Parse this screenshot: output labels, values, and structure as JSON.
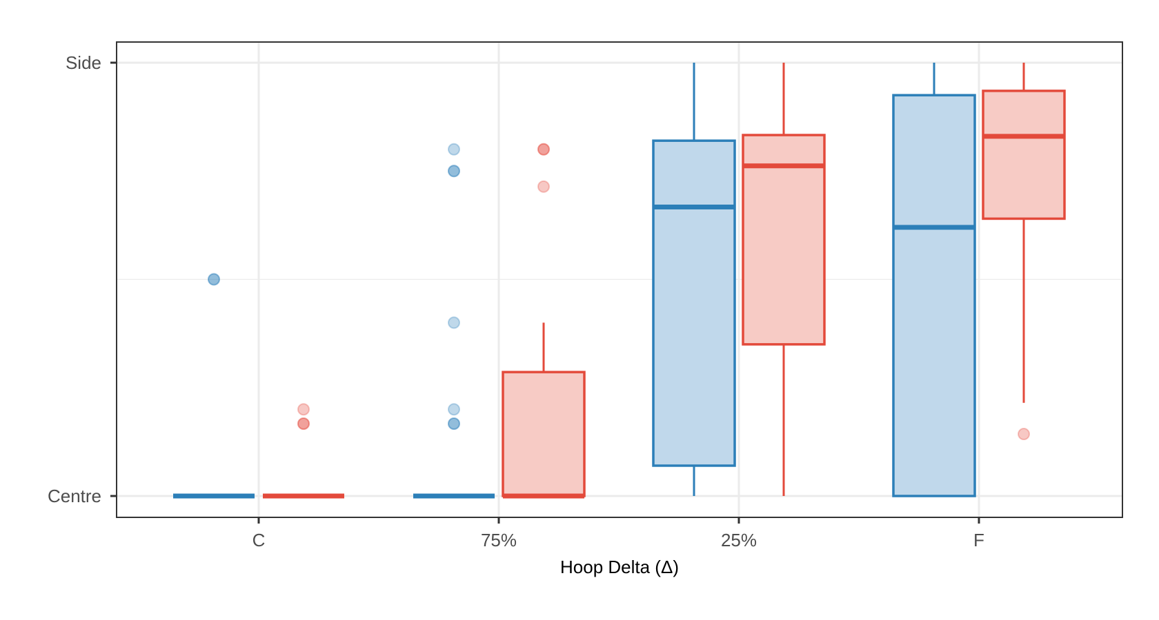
{
  "chart_data": {
    "type": "boxplot",
    "title": "",
    "xlabel": "Hoop Delta (Δ)",
    "ylabel": "",
    "categories": [
      "C",
      "75%",
      "25%",
      "F"
    ],
    "y_ticks": [
      {
        "label": "Centre",
        "value": 0
      },
      {
        "label": "Side",
        "value": 1
      }
    ],
    "ylim": [
      -0.05,
      1.05
    ],
    "grid": true,
    "legend": "none",
    "series": [
      {
        "color": "#2c7fb8",
        "fill": "#c0d8eb",
        "boxes": [
          {
            "q1": 0,
            "median": 0,
            "q3": 0,
            "whisker_low": 0,
            "whisker_high": 0,
            "outliers": [
              0.5,
              0.5
            ]
          },
          {
            "q1": 0,
            "median": 0,
            "q3": 0,
            "whisker_low": 0,
            "whisker_high": 0,
            "outliers": [
              0.8,
              0.75,
              0.75,
              0.4,
              0.2,
              0.167,
              0.167
            ]
          },
          {
            "q1": 0.07,
            "median": 0.667,
            "q3": 0.82,
            "whisker_low": 0,
            "whisker_high": 1,
            "outliers": []
          },
          {
            "q1": 0,
            "median": 0.62,
            "q3": 0.925,
            "whisker_low": 0,
            "whisker_high": 1,
            "outliers": []
          }
        ]
      },
      {
        "color": "#e34a3b",
        "fill": "#f7cbc5",
        "boxes": [
          {
            "q1": 0,
            "median": 0,
            "q3": 0,
            "whisker_low": 0,
            "whisker_high": 0,
            "outliers": [
              0.2,
              0.167,
              0.167
            ]
          },
          {
            "q1": 0,
            "median": 0,
            "q3": 0.286,
            "whisker_low": 0,
            "whisker_high": 0.4,
            "outliers": [
              0.8,
              0.8,
              0.714
            ]
          },
          {
            "q1": 0.35,
            "median": 0.762,
            "q3": 0.833,
            "whisker_low": 0,
            "whisker_high": 1,
            "outliers": []
          },
          {
            "q1": 0.64,
            "median": 0.83,
            "q3": 0.935,
            "whisker_low": 0.215,
            "whisker_high": 1,
            "outliers": [
              0.143
            ]
          }
        ]
      }
    ]
  }
}
